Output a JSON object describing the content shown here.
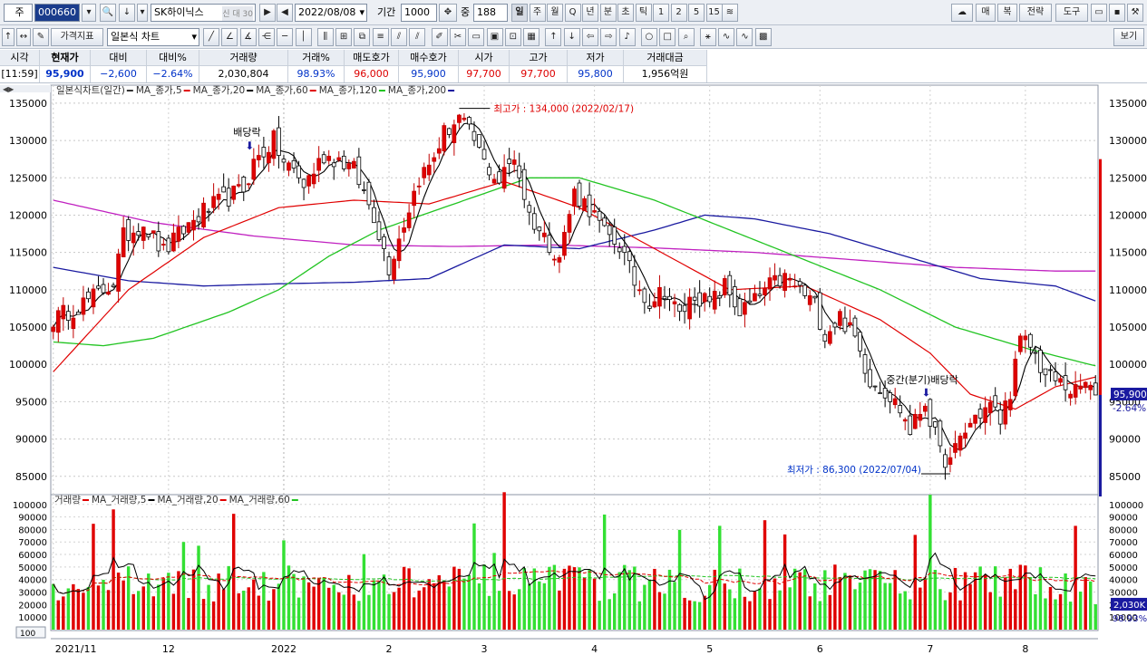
{
  "toolbar": {
    "market": "주",
    "code": "000660",
    "name": "SK하이닉스",
    "badge": "신 대 30",
    "date": "2022/08/08",
    "period_label": "기간",
    "period": "1000",
    "count_label": "중",
    "count": "188",
    "intervals": [
      "일",
      "주",
      "월",
      "Q",
      "년",
      "분",
      "초",
      "틱",
      "1",
      "2",
      "5",
      "15"
    ],
    "right_buttons": [
      "매",
      "복",
      "전략",
      "도구"
    ],
    "chart_type_btn": "가격지표",
    "chart_type": "일본식 차트",
    "view_btn": "보기"
  },
  "quote": {
    "headers": [
      "시각",
      "현재가",
      "대비",
      "대비%",
      "거래량",
      "거래%",
      "매도호가",
      "매수호가",
      "시가",
      "고가",
      "저가",
      "거래대금"
    ],
    "values": [
      "[11:59]",
      "95,900",
      "−2,600",
      "−2.64%",
      "2,030,804",
      "98.93%",
      "96,000",
      "95,900",
      "97,700",
      "97,700",
      "95,800",
      "1,956억원"
    ]
  },
  "price_panel": {
    "legend": [
      {
        "label": "일본식차트(일간)",
        "color": "#333333"
      },
      {
        "label": "MA_종가,5",
        "color": "#e00000"
      },
      {
        "label": "MA_종가,20",
        "color": "#000000"
      },
      {
        "label": "MA_종가,60",
        "color": "#e00000"
      },
      {
        "label": "MA_종가,120",
        "color": "#22c422"
      },
      {
        "label": "MA_종가,200",
        "color": "#1a1aa0"
      }
    ],
    "high_note": "최고가 : 134,000 (2022/02/17)",
    "low_note": "최저가 : 86,300 (2022/07/04)",
    "dividend1": "배당락",
    "dividend2": "중간(분기)배당락",
    "last_price": "95,900",
    "last_change": "-2.64%"
  },
  "volume_panel": {
    "legend": [
      {
        "label": "거래량",
        "color": "#e00000"
      },
      {
        "label": "MA_거래량,5",
        "color": "#000000"
      },
      {
        "label": "MA_거래량,20",
        "color": "#e00000"
      },
      {
        "label": "MA_거래량,60",
        "color": "#22c422"
      }
    ],
    "last_volume": "2,030K",
    "last_pct": "98.93%",
    "scale_btn": "100"
  },
  "chart_data": {
    "type": "candlestick",
    "price_axis": {
      "ticks": [
        85000,
        90000,
        95000,
        100000,
        105000,
        110000,
        115000,
        120000,
        125000,
        130000,
        135000
      ]
    },
    "volume_axis": {
      "ticks": [
        10000,
        20000,
        30000,
        40000,
        50000,
        60000,
        70000,
        80000,
        90000,
        100000
      ]
    },
    "x_ticks": [
      "2021/11",
      "12",
      "2022",
      "2",
      "3",
      "4",
      "5",
      "6",
      "7",
      "8"
    ],
    "x_tick_index": [
      0,
      23,
      46,
      67,
      86,
      108,
      131,
      153,
      175,
      194
    ],
    "anchors": [
      [
        0,
        106000
      ],
      [
        4,
        107500
      ],
      [
        8,
        109000
      ],
      [
        12,
        111000
      ],
      [
        14,
        117000
      ],
      [
        18,
        119000
      ],
      [
        22,
        115000
      ],
      [
        26,
        118000
      ],
      [
        30,
        120500
      ],
      [
        34,
        122000
      ],
      [
        38,
        123500
      ],
      [
        40,
        127000
      ],
      [
        44,
        130000
      ],
      [
        46,
        127000
      ],
      [
        48,
        126000
      ],
      [
        50,
        124000
      ],
      [
        54,
        128000
      ],
      [
        57,
        127500
      ],
      [
        60,
        126000
      ],
      [
        64,
        120000
      ],
      [
        67,
        113000
      ],
      [
        70,
        119000
      ],
      [
        73,
        125000
      ],
      [
        75,
        126500
      ],
      [
        78,
        131000
      ],
      [
        81,
        133000
      ],
      [
        84,
        130000
      ],
      [
        86,
        127000
      ],
      [
        89,
        124500
      ],
      [
        92,
        128000
      ],
      [
        95,
        120000
      ],
      [
        98,
        117000
      ],
      [
        101,
        114500
      ],
      [
        104,
        123000
      ],
      [
        107,
        121000
      ],
      [
        110,
        117500
      ],
      [
        113,
        116000
      ],
      [
        116,
        111000
      ],
      [
        119,
        108500
      ],
      [
        122,
        110000
      ],
      [
        125,
        106500
      ],
      [
        128,
        109500
      ],
      [
        131,
        108000
      ],
      [
        134,
        110500
      ],
      [
        137,
        107000
      ],
      [
        140,
        108500
      ],
      [
        143,
        110500
      ],
      [
        146,
        111500
      ],
      [
        149,
        110000
      ],
      [
        152,
        108000
      ],
      [
        154,
        104000
      ],
      [
        157,
        106500
      ],
      [
        160,
        103500
      ],
      [
        163,
        98000
      ],
      [
        166,
        96500
      ],
      [
        169,
        94000
      ],
      [
        171,
        91000
      ],
      [
        174,
        95000
      ],
      [
        177,
        88000
      ],
      [
        179,
        86800
      ],
      [
        181,
        90000
      ],
      [
        184,
        93000
      ],
      [
        187,
        94500
      ],
      [
        189,
        92500
      ],
      [
        191,
        96500
      ],
      [
        193,
        103000
      ],
      [
        195,
        102500
      ],
      [
        198,
        98500
      ],
      [
        201,
        97500
      ],
      [
        204,
        96200
      ],
      [
        206,
        97500
      ],
      [
        208,
        95900
      ]
    ],
    "ma_anchors": {
      "ma20": [
        [
          0,
          103000
        ],
        [
          15,
          115000
        ],
        [
          30,
          119000
        ],
        [
          45,
          128000
        ],
        [
          58,
          126000
        ],
        [
          68,
          116000
        ],
        [
          80,
          130000
        ],
        [
          90,
          126000
        ],
        [
          100,
          119500
        ],
        [
          110,
          116000
        ],
        [
          122,
          109500
        ],
        [
          135,
          108000
        ],
        [
          148,
          110500
        ],
        [
          160,
          104500
        ],
        [
          172,
          93500
        ],
        [
          178,
          90500
        ],
        [
          188,
          95000
        ],
        [
          195,
          104000
        ],
        [
          202,
          98800
        ],
        [
          208,
          97000
        ]
      ],
      "ma60": [
        [
          0,
          99000
        ],
        [
          15,
          110000
        ],
        [
          30,
          117000
        ],
        [
          45,
          121000
        ],
        [
          60,
          122000
        ],
        [
          75,
          121500
        ],
        [
          90,
          124500
        ],
        [
          105,
          121000
        ],
        [
          120,
          115500
        ],
        [
          135,
          110000
        ],
        [
          150,
          110500
        ],
        [
          165,
          106000
        ],
        [
          175,
          101500
        ],
        [
          183,
          96000
        ],
        [
          192,
          94000
        ],
        [
          200,
          97000
        ],
        [
          208,
          98300
        ]
      ],
      "ma120": [
        [
          0,
          103000
        ],
        [
          10,
          102500
        ],
        [
          20,
          103500
        ],
        [
          35,
          107000
        ],
        [
          45,
          110000
        ],
        [
          55,
          114500
        ],
        [
          65,
          118000
        ],
        [
          80,
          121500
        ],
        [
          95,
          125000
        ],
        [
          105,
          125000
        ],
        [
          120,
          122000
        ],
        [
          135,
          118000
        ],
        [
          150,
          114000
        ],
        [
          165,
          110000
        ],
        [
          180,
          105000
        ],
        [
          195,
          102000
        ],
        [
          208,
          99800
        ]
      ],
      "ma200": [
        [
          0,
          122000
        ],
        [
          20,
          119000
        ],
        [
          40,
          117200
        ],
        [
          60,
          116000
        ],
        [
          80,
          115800
        ],
        [
          100,
          116000
        ],
        [
          120,
          115600
        ],
        [
          140,
          115000
        ],
        [
          160,
          114000
        ],
        [
          180,
          113000
        ],
        [
          200,
          112500
        ],
        [
          208,
          112500
        ]
      ],
      "ma_dark": [
        [
          0,
          113000
        ],
        [
          15,
          111200
        ],
        [
          30,
          110500
        ],
        [
          45,
          110800
        ],
        [
          60,
          111000
        ],
        [
          75,
          111500
        ],
        [
          90,
          116000
        ],
        [
          105,
          115500
        ],
        [
          120,
          118000
        ],
        [
          130,
          120000
        ],
        [
          140,
          119500
        ],
        [
          155,
          117500
        ],
        [
          170,
          114500
        ],
        [
          185,
          111500
        ],
        [
          200,
          110500
        ],
        [
          208,
          108500
        ]
      ]
    },
    "bars": 209
  }
}
